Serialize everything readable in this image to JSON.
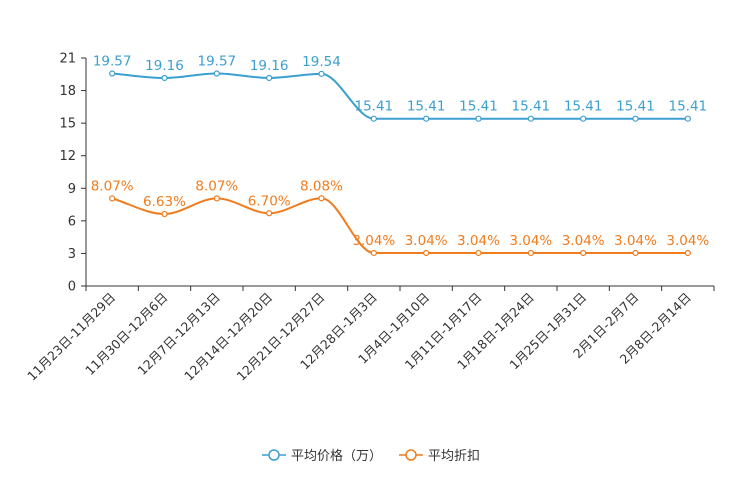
{
  "chart_data": {
    "type": "line",
    "categories": [
      "11月23日-11月29日",
      "11月30日-12月6日",
      "12月7日-12月13日",
      "12月14日-12月20日",
      "12月21日-12月27日",
      "12月28日-1月3日",
      "1月4日-1月10日",
      "1月11日-1月17日",
      "1月18日-1月24日",
      "1月25日-1月31日",
      "2月1日-2月7日",
      "2月8日-2月14日"
    ],
    "ylim": [
      0,
      21
    ],
    "yticks": [
      0,
      3,
      6,
      9,
      12,
      15,
      18,
      21
    ],
    "series": [
      {
        "name": "平均价格（万）",
        "color": "#3b9fcf",
        "values": [
          19.57,
          19.16,
          19.57,
          19.16,
          19.54,
          15.41,
          15.41,
          15.41,
          15.41,
          15.41,
          15.41,
          15.41
        ],
        "labels": [
          "19.57",
          "19.16",
          "19.57",
          "19.16",
          "19.54",
          "15.41",
          "15.41",
          "15.41",
          "15.41",
          "15.41",
          "15.41",
          "15.41"
        ]
      },
      {
        "name": "平均折扣",
        "color": "#f07c1e",
        "values": [
          8.07,
          6.63,
          8.07,
          6.7,
          8.08,
          3.04,
          3.04,
          3.04,
          3.04,
          3.04,
          3.04,
          3.04
        ],
        "labels": [
          "8.07%",
          "6.63%",
          "8.07%",
          "6.70%",
          "8.08%",
          "3.04%",
          "3.04%",
          "3.04%",
          "3.04%",
          "3.04%",
          "3.04%",
          "3.04%"
        ]
      }
    ]
  }
}
